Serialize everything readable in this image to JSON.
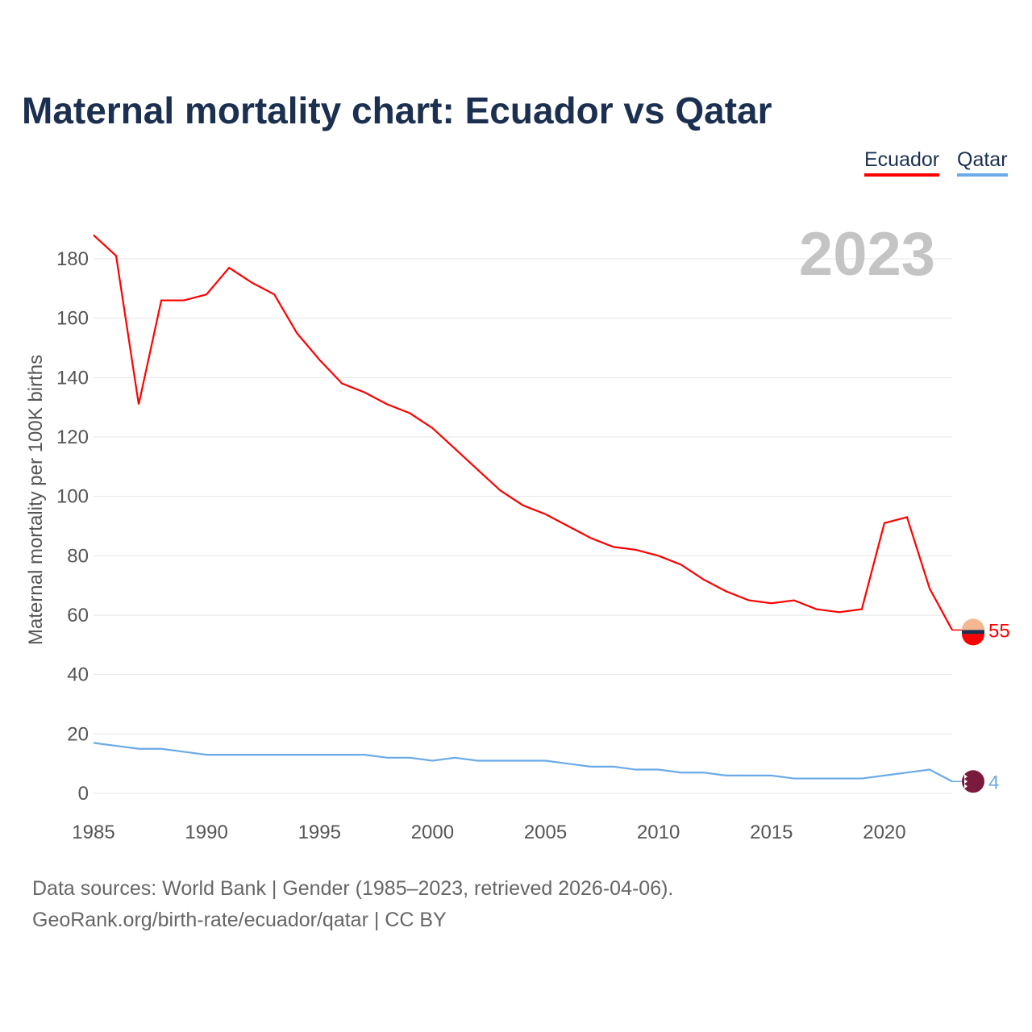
{
  "title": "Maternal mortality chart: Ecuador vs Qatar",
  "footer": {
    "line1": "Data sources: World Bank | Gender (1985–2023, retrieved 2026-04-06).",
    "line2": "GeoRank.org/birth-rate/ecuador/qatar | CC BY"
  },
  "chart_data": {
    "type": "line",
    "title": "Maternal mortality chart: Ecuador vs Qatar",
    "xlabel": "",
    "ylabel": "Maternal mortality per 100K births",
    "year_label": "2023",
    "xlim": [
      1985,
      2023
    ],
    "ylim": [
      0,
      190
    ],
    "x_ticks": [
      1985,
      1990,
      1995,
      2000,
      2005,
      2010,
      2015,
      2020
    ],
    "y_ticks": [
      0,
      20,
      40,
      60,
      80,
      100,
      120,
      140,
      160,
      180
    ],
    "grid": true,
    "legend_position": "top-right",
    "x": [
      1985,
      1986,
      1987,
      1988,
      1989,
      1990,
      1991,
      1992,
      1993,
      1994,
      1995,
      1996,
      1997,
      1998,
      1999,
      2000,
      2001,
      2002,
      2003,
      2004,
      2005,
      2006,
      2007,
      2008,
      2009,
      2010,
      2011,
      2012,
      2013,
      2014,
      2015,
      2016,
      2017,
      2018,
      2019,
      2020,
      2021,
      2022,
      2023
    ],
    "series": [
      {
        "name": "Ecuador",
        "color": "#ff0000",
        "end_label": "55",
        "values": [
          188,
          181,
          131,
          166,
          166,
          168,
          177,
          172,
          168,
          155,
          146,
          138,
          135,
          131,
          128,
          123,
          116,
          109,
          102,
          97,
          94,
          90,
          86,
          83,
          82,
          80,
          77,
          72,
          68,
          65,
          64,
          65,
          62,
          61,
          62,
          91,
          93,
          69,
          55
        ]
      },
      {
        "name": "Qatar",
        "color": "#6aaae8",
        "end_label": "4",
        "values": [
          17,
          16,
          15,
          15,
          14,
          13,
          13,
          13,
          13,
          13,
          13,
          13,
          13,
          12,
          12,
          11,
          12,
          11,
          11,
          11,
          11,
          10,
          9,
          9,
          8,
          8,
          7,
          7,
          6,
          6,
          6,
          5,
          5,
          5,
          5,
          6,
          7,
          8,
          4
        ]
      }
    ]
  }
}
